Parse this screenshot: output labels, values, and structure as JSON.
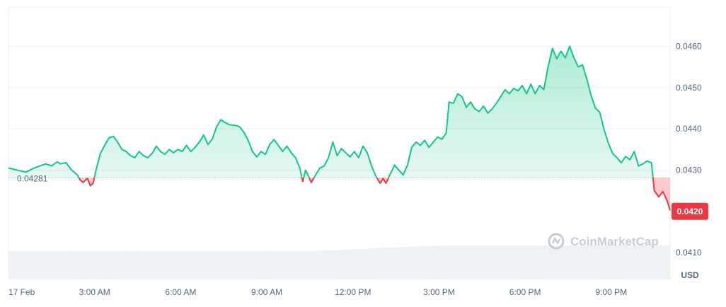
{
  "chart_data": {
    "type": "area",
    "baseline": 0.04281,
    "baseline_label": "0.04281",
    "current_price": 0.042,
    "current_price_label": "0.0420",
    "unit": "USD",
    "watermark": "CoinMarketCap",
    "y_ticks": [
      {
        "value": 0.046,
        "label": "0.0460"
      },
      {
        "value": 0.045,
        "label": "0.0450"
      },
      {
        "value": 0.044,
        "label": "0.0440"
      },
      {
        "value": 0.043,
        "label": "0.0430"
      },
      {
        "value": 0.041,
        "label": "0.0410"
      }
    ],
    "x_ticks": [
      {
        "hour": 0,
        "label": "17 Feb"
      },
      {
        "hour": 3,
        "label": "3:00 AM"
      },
      {
        "hour": 6,
        "label": "6:00 AM"
      },
      {
        "hour": 9,
        "label": "9:00 AM"
      },
      {
        "hour": 12,
        "label": "12:00 PM"
      },
      {
        "hour": 15,
        "label": "3:00 PM"
      },
      {
        "hour": 18,
        "label": "6:00 PM"
      },
      {
        "hour": 21,
        "label": "9:00 PM"
      }
    ],
    "colors": {
      "up": "#16c784",
      "down": "#ea3943",
      "grid": "#eff2f5",
      "volume": "#eff2f5",
      "tag": "#ea3943"
    },
    "series": [
      {
        "points": [
          [
            0.0,
            0.04305
          ],
          [
            0.3,
            0.043
          ],
          [
            0.6,
            0.04295
          ],
          [
            0.9,
            0.04305
          ],
          [
            1.1,
            0.0431
          ],
          [
            1.3,
            0.04315
          ],
          [
            1.5,
            0.0431
          ],
          [
            1.7,
            0.0432
          ],
          [
            1.8,
            0.04315
          ],
          [
            2.0,
            0.04318
          ],
          [
            2.2,
            0.043
          ],
          [
            2.4,
            0.04288
          ],
          [
            2.5,
            0.04276
          ],
          [
            2.6,
            0.0427
          ],
          [
            2.75,
            0.0428
          ],
          [
            2.85,
            0.04262
          ],
          [
            2.95,
            0.04268
          ],
          [
            3.05,
            0.043
          ],
          [
            3.2,
            0.0434
          ],
          [
            3.35,
            0.0436
          ],
          [
            3.5,
            0.04378
          ],
          [
            3.65,
            0.04382
          ],
          [
            3.8,
            0.04368
          ],
          [
            3.95,
            0.0435
          ],
          [
            4.1,
            0.04345
          ],
          [
            4.25,
            0.04335
          ],
          [
            4.4,
            0.0433
          ],
          [
            4.55,
            0.04345
          ],
          [
            4.7,
            0.04335
          ],
          [
            4.85,
            0.0433
          ],
          [
            5.0,
            0.0434
          ],
          [
            5.15,
            0.04358
          ],
          [
            5.3,
            0.04345
          ],
          [
            5.45,
            0.04338
          ],
          [
            5.6,
            0.0435
          ],
          [
            5.75,
            0.04342
          ],
          [
            5.9,
            0.0435
          ],
          [
            6.05,
            0.04345
          ],
          [
            6.2,
            0.0436
          ],
          [
            6.35,
            0.04345
          ],
          [
            6.5,
            0.04355
          ],
          [
            6.65,
            0.04368
          ],
          [
            6.8,
            0.04385
          ],
          [
            6.95,
            0.04362
          ],
          [
            7.1,
            0.04375
          ],
          [
            7.25,
            0.04405
          ],
          [
            7.4,
            0.04422
          ],
          [
            7.55,
            0.04415
          ],
          [
            7.7,
            0.0441
          ],
          [
            7.9,
            0.04408
          ],
          [
            8.05,
            0.04405
          ],
          [
            8.2,
            0.04392
          ],
          [
            8.35,
            0.04372
          ],
          [
            8.5,
            0.04345
          ],
          [
            8.65,
            0.04332
          ],
          [
            8.8,
            0.04345
          ],
          [
            8.95,
            0.04338
          ],
          [
            9.1,
            0.04362
          ],
          [
            9.25,
            0.04374
          ],
          [
            9.4,
            0.0436
          ],
          [
            9.55,
            0.04345
          ],
          [
            9.7,
            0.04358
          ],
          [
            9.85,
            0.04342
          ],
          [
            10.0,
            0.0433
          ],
          [
            10.15,
            0.04305
          ],
          [
            10.25,
            0.04272
          ],
          [
            10.35,
            0.043
          ],
          [
            10.45,
            0.04285
          ],
          [
            10.55,
            0.0427
          ],
          [
            10.7,
            0.04288
          ],
          [
            10.85,
            0.04305
          ],
          [
            11.0,
            0.0431
          ],
          [
            11.15,
            0.0433
          ],
          [
            11.3,
            0.04368
          ],
          [
            11.45,
            0.04335
          ],
          [
            11.6,
            0.04352
          ],
          [
            11.75,
            0.04342
          ],
          [
            11.9,
            0.04332
          ],
          [
            12.05,
            0.04345
          ],
          [
            12.2,
            0.0433
          ],
          [
            12.35,
            0.04358
          ],
          [
            12.5,
            0.04342
          ],
          [
            12.65,
            0.0431
          ],
          [
            12.8,
            0.04285
          ],
          [
            12.95,
            0.04268
          ],
          [
            13.05,
            0.0428
          ],
          [
            13.15,
            0.04268
          ],
          [
            13.3,
            0.0429
          ],
          [
            13.45,
            0.04312
          ],
          [
            13.6,
            0.043
          ],
          [
            13.75,
            0.04288
          ],
          [
            13.9,
            0.04312
          ],
          [
            14.05,
            0.04355
          ],
          [
            14.2,
            0.04368
          ],
          [
            14.35,
            0.0436
          ],
          [
            14.5,
            0.04372
          ],
          [
            14.65,
            0.04355
          ],
          [
            14.8,
            0.04368
          ],
          [
            14.95,
            0.0438
          ],
          [
            15.1,
            0.04375
          ],
          [
            15.25,
            0.0439
          ],
          [
            15.35,
            0.04465
          ],
          [
            15.5,
            0.04462
          ],
          [
            15.65,
            0.04485
          ],
          [
            15.8,
            0.04478
          ],
          [
            15.95,
            0.04452
          ],
          [
            16.1,
            0.04465
          ],
          [
            16.25,
            0.04448
          ],
          [
            16.4,
            0.04442
          ],
          [
            16.55,
            0.04455
          ],
          [
            16.7,
            0.04438
          ],
          [
            16.85,
            0.04448
          ],
          [
            17.0,
            0.04462
          ],
          [
            17.15,
            0.04478
          ],
          [
            17.3,
            0.04495
          ],
          [
            17.45,
            0.04485
          ],
          [
            17.6,
            0.04498
          ],
          [
            17.75,
            0.04492
          ],
          [
            17.9,
            0.04505
          ],
          [
            18.05,
            0.04485
          ],
          [
            18.2,
            0.04508
          ],
          [
            18.35,
            0.04485
          ],
          [
            18.5,
            0.04505
          ],
          [
            18.65,
            0.04495
          ],
          [
            18.8,
            0.0455
          ],
          [
            18.95,
            0.04595
          ],
          [
            19.1,
            0.0457
          ],
          [
            19.25,
            0.04588
          ],
          [
            19.4,
            0.04572
          ],
          [
            19.55,
            0.046
          ],
          [
            19.7,
            0.04572
          ],
          [
            19.85,
            0.0455
          ],
          [
            20.0,
            0.04555
          ],
          [
            20.15,
            0.0452
          ],
          [
            20.3,
            0.0448
          ],
          [
            20.45,
            0.0445
          ],
          [
            20.6,
            0.0444
          ],
          [
            20.75,
            0.04398
          ],
          [
            20.9,
            0.04365
          ],
          [
            21.05,
            0.0434
          ],
          [
            21.2,
            0.0433
          ],
          [
            21.35,
            0.04318
          ],
          [
            21.5,
            0.04333
          ],
          [
            21.65,
            0.04325
          ],
          [
            21.8,
            0.04345
          ],
          [
            21.95,
            0.0431
          ],
          [
            22.1,
            0.04315
          ],
          [
            22.25,
            0.04322
          ],
          [
            22.4,
            0.04318
          ],
          [
            22.5,
            0.0425
          ],
          [
            22.65,
            0.04235
          ],
          [
            22.8,
            0.04248
          ],
          [
            22.95,
            0.04225
          ],
          [
            23.05,
            0.04202
          ]
        ]
      }
    ],
    "ylim": [
      0.04035,
      0.04695
    ],
    "xlim": [
      0.0,
      23.05
    ]
  }
}
